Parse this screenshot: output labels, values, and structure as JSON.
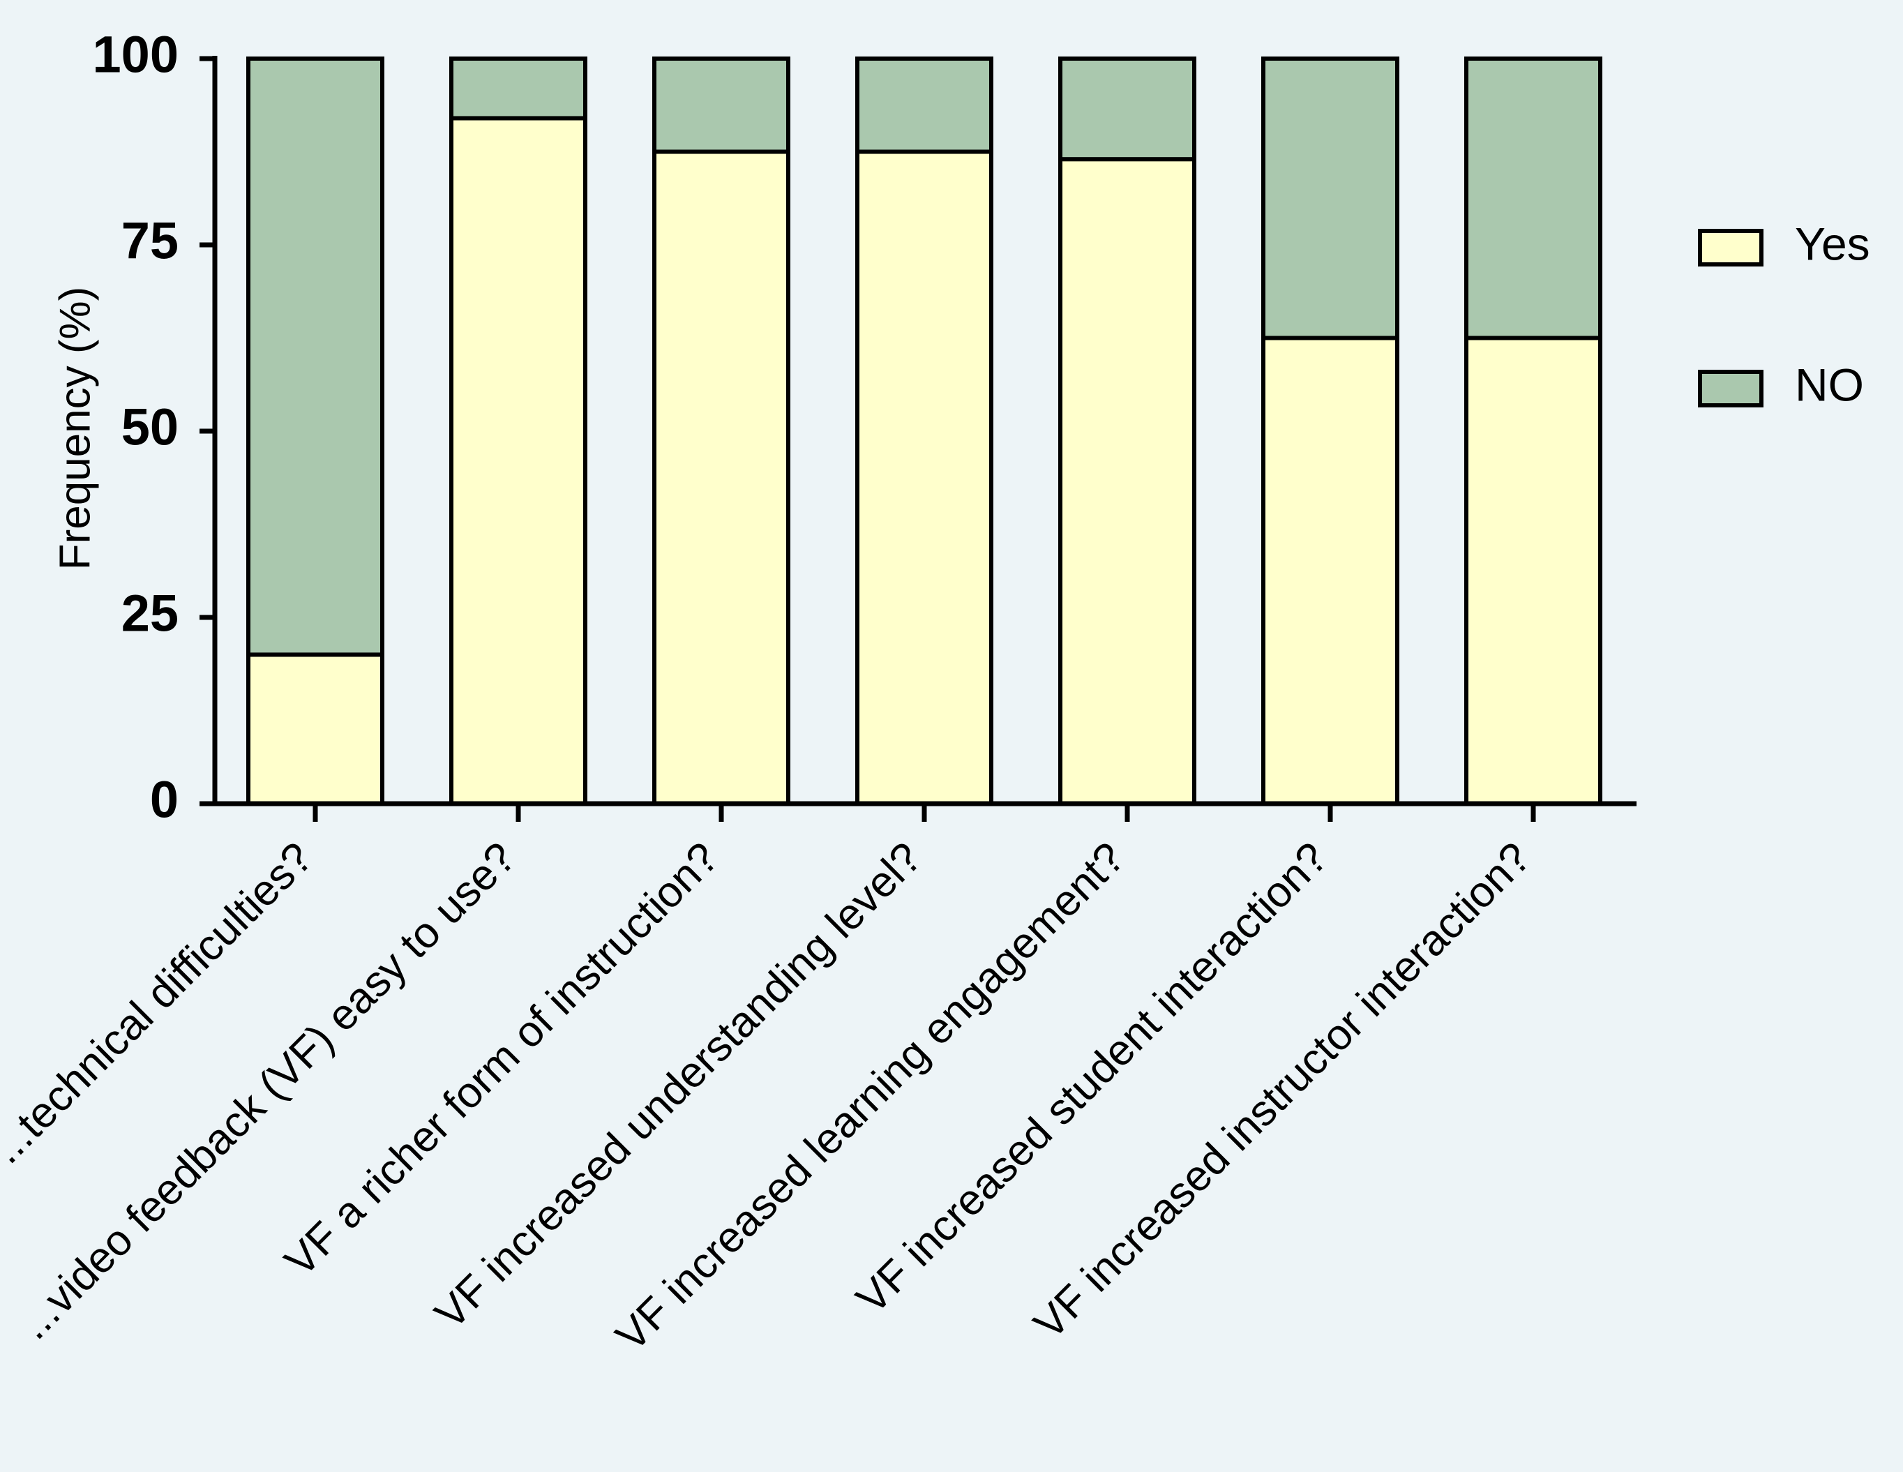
{
  "chart_data": {
    "type": "bar",
    "stacked": true,
    "ylabel": "Frequency (%)",
    "xlabel": "",
    "ylim": [
      0,
      100
    ],
    "yticks": [
      0,
      25,
      50,
      75,
      100
    ],
    "ytick_labels": [
      "0",
      "25",
      "50",
      "75",
      "100"
    ],
    "categories": [
      "...technical difficulties?",
      "...video feedback (VF) easy to use?",
      "VF a richer form of instruction?",
      "VF increased understanding level?",
      "VF increased learning engagement?",
      "VF increased student interaction?",
      "VF increased instructor interaction?"
    ],
    "series": [
      {
        "name": "Yes",
        "color": "#ffffcc",
        "values": [
          20,
          92,
          87.5,
          87.5,
          86.5,
          62.5,
          62.5
        ]
      },
      {
        "name": "NO",
        "color": "#aac8ae",
        "values": [
          80,
          8,
          12.5,
          12.5,
          13.5,
          37.5,
          37.5
        ]
      }
    ],
    "grid": false,
    "legend_position": "right"
  }
}
